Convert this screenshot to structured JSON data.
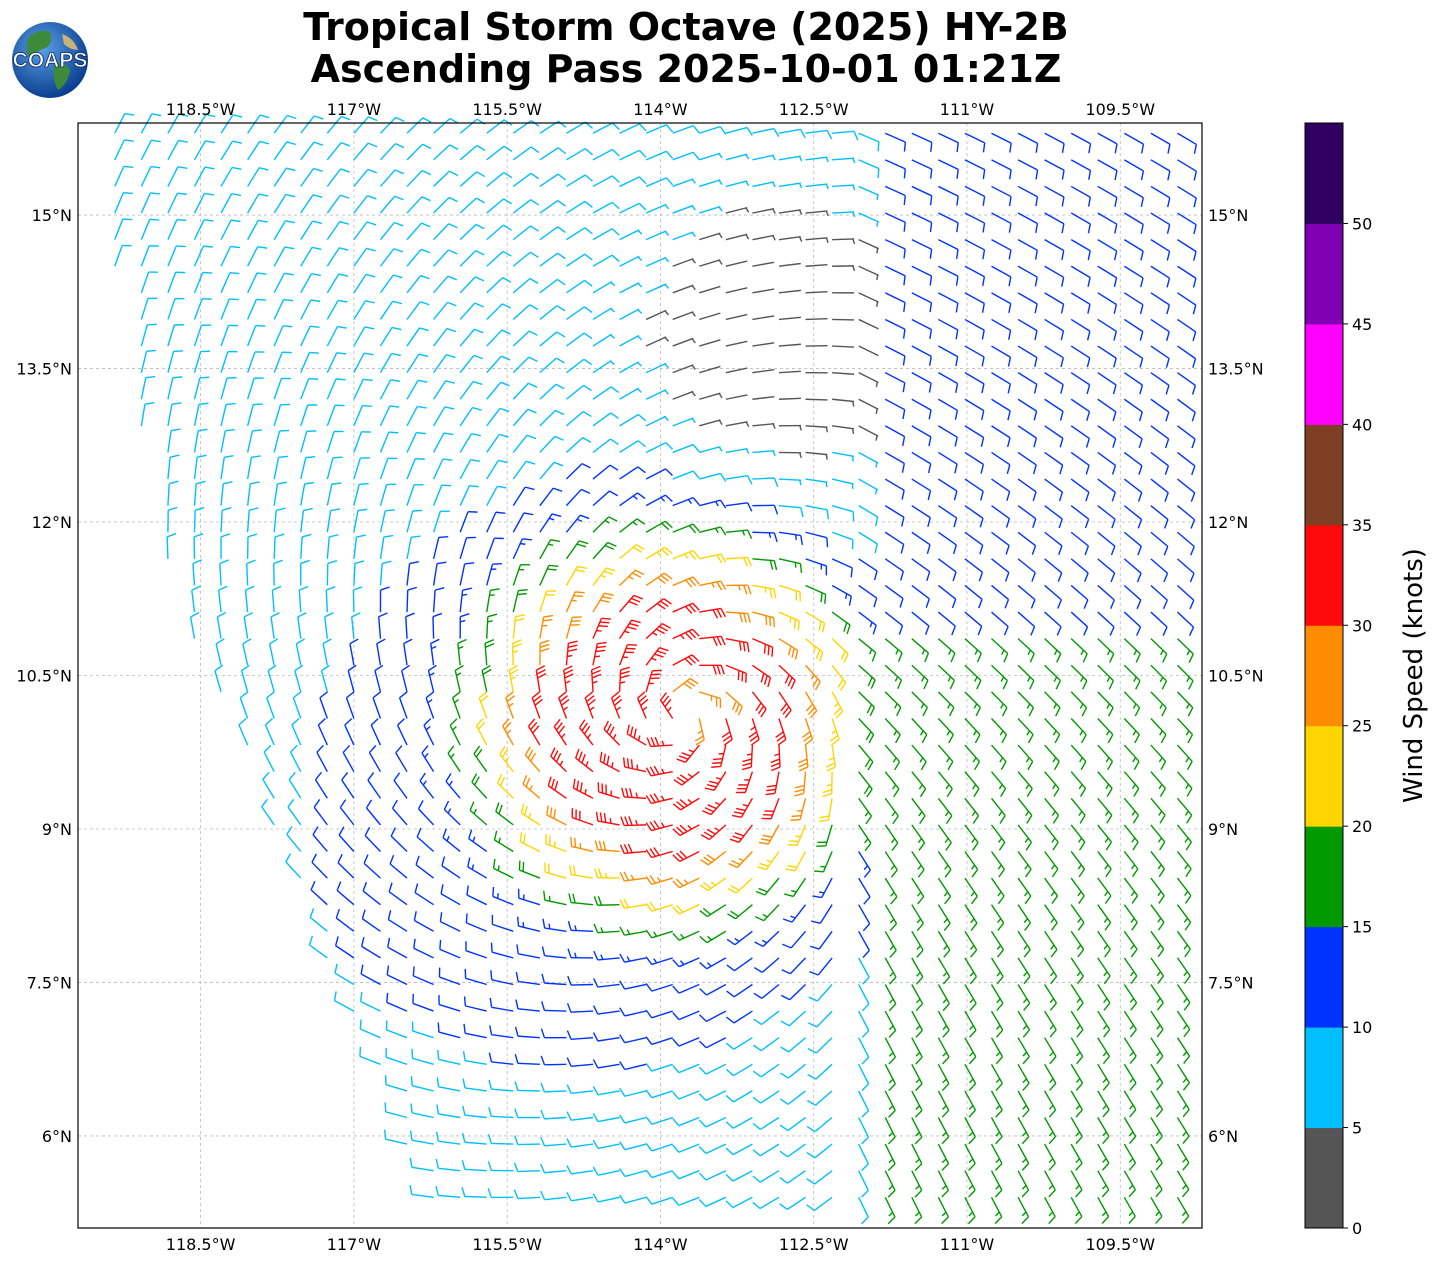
{
  "title": {
    "line1": "Tropical Storm Octave (2025) HY-2B",
    "line2": "Ascending Pass 2025-10-01 01:21Z"
  },
  "logo": {
    "text": "COAPS",
    "icon": "globe-logo-icon"
  },
  "map": {
    "lon_range": [
      -119.7,
      -108.7
    ],
    "lat_range": [
      5.1,
      15.9
    ],
    "storm_center": {
      "lon": -113.8,
      "lat": 10.1
    },
    "grid": true,
    "lon_ticks": [
      {
        "value": -118.5,
        "label": "118.5°W"
      },
      {
        "value": -117.0,
        "label": "117°W"
      },
      {
        "value": -115.5,
        "label": "115.5°W"
      },
      {
        "value": -114.0,
        "label": "114°W"
      },
      {
        "value": -112.5,
        "label": "112.5°W"
      },
      {
        "value": -111.0,
        "label": "111°W"
      },
      {
        "value": -109.5,
        "label": "109.5°W"
      }
    ],
    "lat_ticks": [
      {
        "value": 15.0,
        "label": "15°N"
      },
      {
        "value": 13.5,
        "label": "13.5°N"
      },
      {
        "value": 12.0,
        "label": "12°N"
      },
      {
        "value": 10.5,
        "label": "10.5°N"
      },
      {
        "value": 9.0,
        "label": "9°N"
      },
      {
        "value": 7.5,
        "label": "7.5°N"
      },
      {
        "value": 6.0,
        "label": "6°N"
      }
    ]
  },
  "colorbar": {
    "label": "Wind Speed (knots)",
    "range": [
      0,
      55
    ],
    "bins": [
      {
        "from": 0,
        "to": 5,
        "color": "#555555"
      },
      {
        "from": 5,
        "to": 10,
        "color": "#00bfff"
      },
      {
        "from": 10,
        "to": 15,
        "color": "#0033ff"
      },
      {
        "from": 15,
        "to": 20,
        "color": "#009900"
      },
      {
        "from": 20,
        "to": 25,
        "color": "#ffd500"
      },
      {
        "from": 25,
        "to": 30,
        "color": "#ff8c00"
      },
      {
        "from": 30,
        "to": 35,
        "color": "#ff0a0a"
      },
      {
        "from": 35,
        "to": 40,
        "color": "#7f3f25"
      },
      {
        "from": 40,
        "to": 45,
        "color": "#ff00ff"
      },
      {
        "from": 45,
        "to": 50,
        "color": "#8000b3"
      },
      {
        "from": 50,
        "to": 55,
        "color": "#2f005f"
      }
    ],
    "ticks": [
      {
        "value": 0,
        "label": "0"
      },
      {
        "value": 5,
        "label": "5"
      },
      {
        "value": 10,
        "label": "10"
      },
      {
        "value": 15,
        "label": "15"
      },
      {
        "value": 20,
        "label": "20"
      },
      {
        "value": 25,
        "label": "25"
      },
      {
        "value": 30,
        "label": "30"
      },
      {
        "value": 35,
        "label": "35"
      },
      {
        "value": 40,
        "label": "40"
      },
      {
        "value": 45,
        "label": "45"
      },
      {
        "value": 50,
        "label": "50"
      }
    ]
  }
}
